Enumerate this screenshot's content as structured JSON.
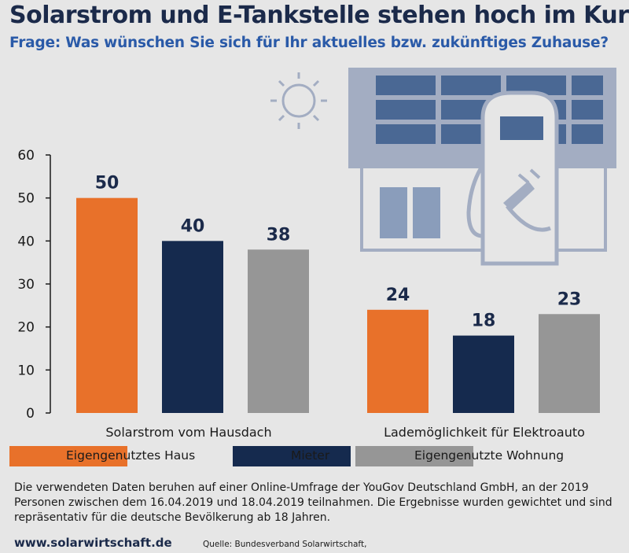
{
  "header": {
    "title": "Solarstrom und E-Tankstelle stehen hoch im Kurs",
    "subtitle": "Frage: Was wünschen Sie sich für Ihr aktuelles bzw. zukünftiges Zuhause?"
  },
  "chart_data": {
    "type": "bar",
    "categories": [
      "Solarstrom vom Hausdach",
      "Lademöglichkeit für Elektroauto"
    ],
    "series": [
      {
        "name": "Eigengenutztes Haus",
        "values": [
          50,
          24
        ],
        "color": "#e8712a"
      },
      {
        "name": "Mieter",
        "values": [
          40,
          18
        ],
        "color": "#152a4e"
      },
      {
        "name": "Eigengenutzte Wohnung",
        "values": [
          38,
          23
        ],
        "color": "#969696"
      }
    ],
    "ylim": [
      0,
      60
    ],
    "yticks": [
      0,
      10,
      20,
      30,
      40,
      50,
      60
    ],
    "grid": false,
    "legend_position": "bottom",
    "data_labels": true
  },
  "footer": {
    "note": "Die verwendeten Daten beruhen auf einer Online-Umfrage der YouGov Deutschland GmbH, an der 2019 Personen zwischen dem 16.04.2019 und 18.04.2019 teilnahmen. Die Ergebnisse wurden gewichtet und sind repräsentativ für die deutsche Bevölkerung ab 18 Jahren.",
    "website": "www.solarwirtschaft.de",
    "source": "Quelle: Bundesverband Solarwirtschaft,"
  },
  "icons": [
    "sun-icon",
    "solar-house-icon",
    "charging-station-icon",
    "plug-icon"
  ]
}
